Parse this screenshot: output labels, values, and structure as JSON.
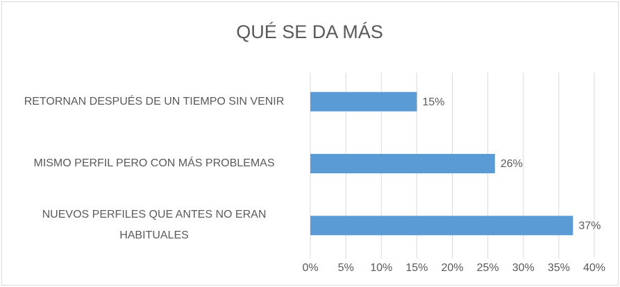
{
  "chart_data": {
    "type": "bar",
    "orientation": "horizontal",
    "title": "QUÉ SE DA MÁS",
    "categories": [
      "RETORNAN DESPUÉS DE UN TIEMPO SIN VENIR",
      "MISMO PERFIL PERO CON MÁS PROBLEMAS",
      "NUEVOS PERFILES QUE ANTES NO ERAN HABITUALES"
    ],
    "values": [
      15,
      26,
      37
    ],
    "value_labels": [
      "15%",
      "26%",
      "37%"
    ],
    "color": "#5b9bd5",
    "xlim": [
      0,
      40
    ],
    "xticks": [
      {
        "value": 0,
        "label": "0%"
      },
      {
        "value": 5,
        "label": "5%"
      },
      {
        "value": 10,
        "label": "10%"
      },
      {
        "value": 15,
        "label": "15%"
      },
      {
        "value": 20,
        "label": "20%"
      },
      {
        "value": 25,
        "label": "25%"
      },
      {
        "value": 30,
        "label": "30%"
      },
      {
        "value": 35,
        "label": "35%"
      },
      {
        "value": 40,
        "label": "40%"
      }
    ],
    "grid": true
  }
}
